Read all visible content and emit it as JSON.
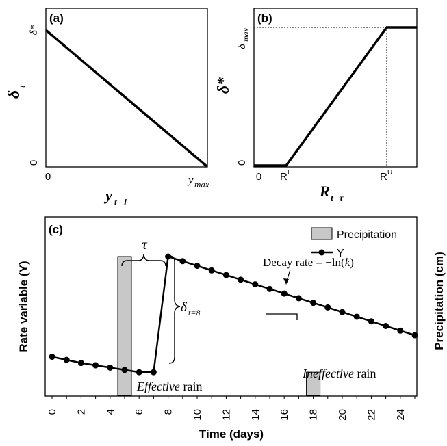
{
  "panel_a": {
    "label": "(a)",
    "y_axis_symbol": "δ",
    "y_axis_sub": "t",
    "x_axis_symbol": "y",
    "x_axis_sub": "t−1",
    "y_top_tick": "δ*",
    "y_zero_tick": "0",
    "x_zero_tick": "0",
    "x_max_tick": "y",
    "x_max_tick_sub": "max"
  },
  "panel_b": {
    "label": "(b)",
    "y_axis_symbol": "δ*",
    "x_axis_symbol": "R",
    "x_axis_sub": "t−τ",
    "y_max_tick": "δ",
    "y_max_tick_sub": "max",
    "y_zero_tick": "0",
    "x_zero_tick": "0",
    "x_lower_tick": "R",
    "x_lower_sup": "L",
    "x_upper_tick": "R",
    "x_upper_sup": "U"
  },
  "panel_c": {
    "label": "(c)",
    "legend": {
      "precip_label": "Precipitation",
      "y_label": "Y"
    },
    "ylabel_left": "Rate variable (Y)",
    "ylabel_right": "Precipitation (cm)",
    "xlabel": "Time (days)",
    "tau_label": "τ",
    "delta_label": "δ",
    "delta_sub": "t=8",
    "decay_label": "Decay rate = −ln(",
    "decay_k": "k",
    "decay_close": ")",
    "effective_italic": "Effective",
    "effective_rest": " rain",
    "ineffective_italic": "Ineffective",
    "ineffective_rest": " rain"
  },
  "chart_data": {
    "type": "line",
    "xlabel": "Time (days)",
    "ylabel": "Rate variable (Y)",
    "xlim": [
      0,
      25
    ],
    "x_ticks": [
      0,
      2,
      4,
      6,
      8,
      10,
      12,
      14,
      16,
      18,
      20,
      22,
      24
    ],
    "series": [
      {
        "name": "Y",
        "x": [
          0,
          1,
          2,
          3,
          4,
          5,
          6,
          7,
          8,
          9,
          10,
          11,
          12,
          13,
          14,
          15,
          16,
          17,
          18,
          19,
          20,
          21,
          22,
          23,
          24,
          25
        ],
        "y": [
          0.25,
          0.23,
          0.21,
          0.195,
          0.18,
          0.165,
          0.15,
          0.15,
          0.9,
          0.87,
          0.84,
          0.81,
          0.78,
          0.75,
          0.72,
          0.69,
          0.66,
          0.63,
          0.6,
          0.57,
          0.54,
          0.51,
          0.48,
          0.45,
          0.42,
          0.39
        ]
      }
    ],
    "bars": {
      "name": "Precipitation",
      "x": [
        5,
        18
      ],
      "height": [
        0.9,
        0.15
      ]
    }
  }
}
